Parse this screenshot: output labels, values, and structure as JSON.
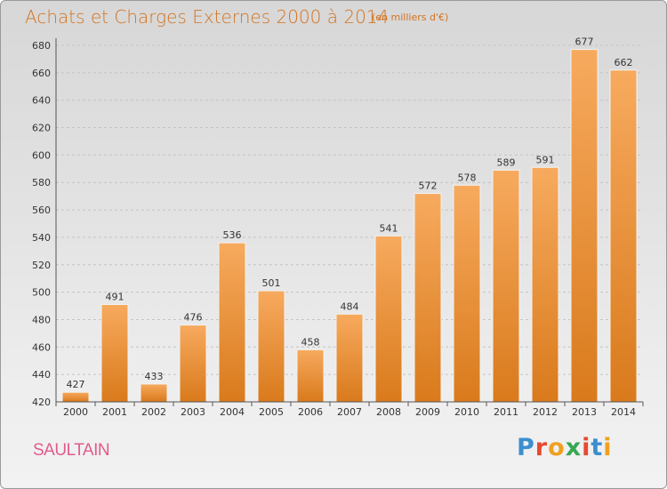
{
  "header": {
    "title": "Achats et Charges Externes 2000 à 2014",
    "subtitle": "(en milliers d'€)"
  },
  "footer": {
    "place": "SAULTAIN",
    "logo_text": "Proxiti",
    "logo_colors": [
      "#3b8fd0",
      "#e8492e",
      "#f0a020",
      "#35a853",
      "#e8492e",
      "#3b8fd0",
      "#f0a020"
    ]
  },
  "chart_data": {
    "type": "bar",
    "title": "Achats et Charges Externes 2000 à 2014",
    "subtitle": "(en milliers d'€)",
    "xlabel": "",
    "ylabel": "",
    "categories": [
      "2000",
      "2001",
      "2002",
      "2003",
      "2004",
      "2005",
      "2006",
      "2007",
      "2008",
      "2009",
      "2010",
      "2011",
      "2012",
      "2013",
      "2014"
    ],
    "values": [
      427,
      491,
      433,
      476,
      536,
      501,
      458,
      484,
      541,
      572,
      578,
      589,
      591,
      677,
      662
    ],
    "ylim": [
      420,
      680
    ],
    "yticks": [
      420,
      440,
      460,
      480,
      500,
      520,
      540,
      560,
      580,
      600,
      620,
      640,
      660,
      680
    ],
    "grid": true,
    "bar_color_top": "#f6a65a",
    "bar_color_bottom": "#dc7d1f"
  }
}
